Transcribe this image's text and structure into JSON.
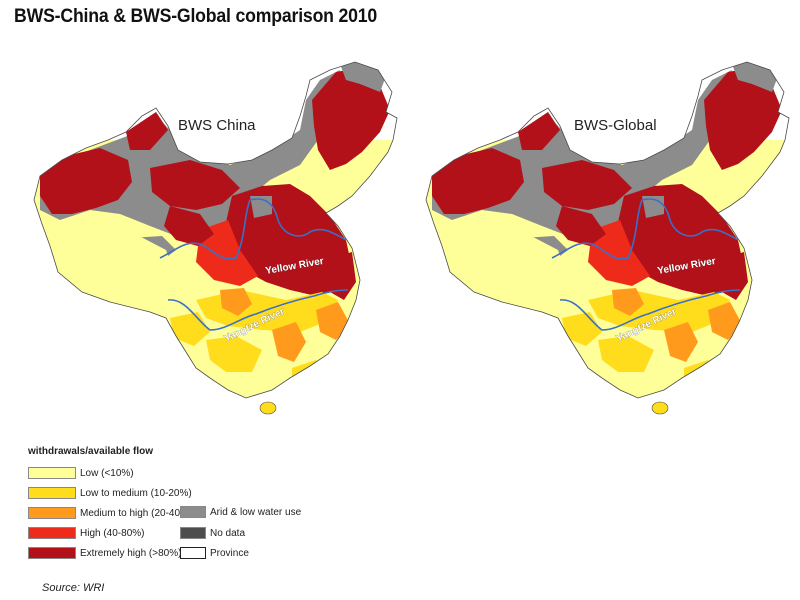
{
  "title": "BWS-China & BWS-Global comparison 2010",
  "maps": [
    {
      "label": "BWS China"
    },
    {
      "label": "BWS-Global"
    }
  ],
  "rivers": {
    "yellow": "Yellow River",
    "yangtze": "Yangtze River"
  },
  "legend": {
    "title": "withdrawals/available flow",
    "categories": [
      {
        "label": "Low (<10%)",
        "color": "#ffff99"
      },
      {
        "label": "Low to medium (10-20%)",
        "color": "#ffdd1c"
      },
      {
        "label": "Medium to high (20-40%)",
        "color": "#ff9a1c"
      },
      {
        "label": "High (40-80%)",
        "color": "#ee2a1a"
      },
      {
        "label": "Extremely high (>80%)",
        "color": "#b3111a"
      }
    ],
    "other": [
      {
        "label": "Arid & low water use",
        "color": "#8c8c8c"
      },
      {
        "label": "No data",
        "color": "#4d4d4d"
      },
      {
        "label": "Province",
        "color": "#ffffff"
      }
    ]
  },
  "colors": {
    "river": "#3a70c8",
    "province_border": "#4a4a4a"
  },
  "source": "Source: WRI"
}
